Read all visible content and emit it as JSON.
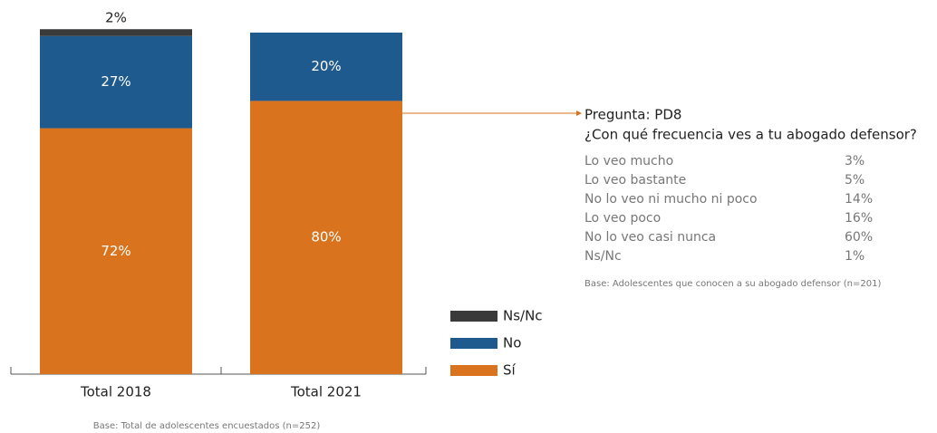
{
  "chart_data": {
    "type": "stacked_bar",
    "categories": [
      "Total 2018",
      "Total 2021"
    ],
    "ylim": [
      0,
      100
    ],
    "series": [
      {
        "name": "Sí",
        "color": "#d9731d",
        "values": [
          72,
          80
        ],
        "value_labels": [
          "72%",
          "80%"
        ]
      },
      {
        "name": "No",
        "color": "#1f5a8e",
        "values": [
          27,
          20
        ],
        "value_labels": [
          "27%",
          "20%"
        ]
      },
      {
        "name": "Ns/Nc",
        "color": "#3a3a3a",
        "values": [
          2,
          0
        ],
        "value_labels": [
          "2%",
          null
        ]
      }
    ],
    "legend": "right",
    "footnote": "Base: Total de adolescentes encuestados (n=252)",
    "annotation": {
      "title": "Pregunta: PD8",
      "question": "¿Con qué frecuencia ves a tu abogado defensor?",
      "rows": [
        [
          "Lo veo mucho",
          "3%"
        ],
        [
          "Lo veo bastante",
          "5%"
        ],
        [
          "No lo veo ni mucho ni poco",
          "14%"
        ],
        [
          "Lo veo poco",
          "16%"
        ],
        [
          "No lo veo casi nunca",
          "60%"
        ],
        [
          "Ns/Nc",
          "1%"
        ]
      ],
      "note": "Base: Adolescentes que conocen a su abogado defensor (n=201)"
    }
  }
}
